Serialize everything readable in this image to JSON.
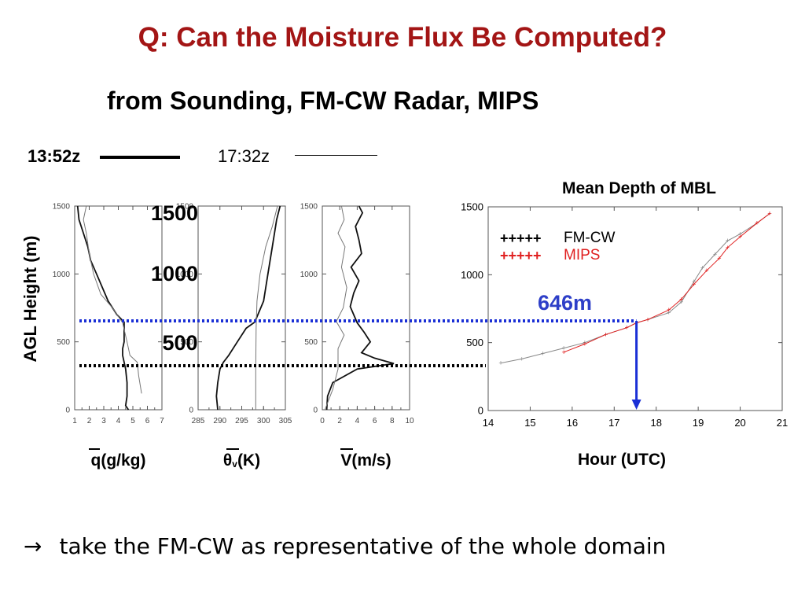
{
  "slide": {
    "title": "Q: Can the Moisture Flux Be Computed?",
    "subtitle": "from Sounding, FM-CW Radar, MIPS",
    "time_thick": "13:52z",
    "time_thin": "17:32z",
    "bottom_arrow": "→",
    "bottom_text": "take the FM-CW as representative of the whole domain",
    "title_color": "#a31515"
  },
  "chart_data": [
    {
      "type": "line",
      "ylabel": "AGL Height (m)",
      "xlabel_parts": [
        "q",
        "(g/kg)"
      ],
      "xlim": [
        1,
        7
      ],
      "ylim": [
        0,
        1500
      ],
      "xticks": [
        "1",
        "2",
        "3",
        "4",
        "5",
        "6",
        "7"
      ],
      "yticks": [
        "0",
        "500",
        "1000",
        "1500"
      ],
      "overlay_labels": [
        "1500",
        "1000",
        "500"
      ],
      "series": [
        {
          "values_xy": [
            [
              4.7,
              0
            ],
            [
              4.5,
              30
            ],
            [
              4.6,
              100
            ],
            [
              4.6,
              200
            ],
            [
              4.5,
              300
            ],
            [
              4.4,
              350
            ],
            [
              4.3,
              400
            ],
            [
              4.3,
              450
            ],
            [
              4.4,
              500
            ],
            [
              4.4,
              600
            ],
            [
              4.4,
              646
            ],
            [
              3.9,
              700
            ],
            [
              3.3,
              800
            ],
            [
              2.9,
              900
            ],
            [
              2.5,
              1000
            ],
            [
              2.1,
              1100
            ],
            [
              1.9,
              1200
            ],
            [
              1.6,
              1300
            ],
            [
              1.3,
              1400
            ],
            [
              1.2,
              1500
            ]
          ]
        },
        {
          "values_xy": [
            [
              5.6,
              120
            ],
            [
              5.4,
              250
            ],
            [
              5.3,
              350
            ],
            [
              4.8,
              400
            ],
            [
              4.6,
              500
            ],
            [
              4.3,
              640
            ],
            [
              3.6,
              750
            ],
            [
              2.8,
              850
            ],
            [
              2.3,
              1000
            ],
            [
              2.0,
              1150
            ],
            [
              1.8,
              1300
            ],
            [
              1.6,
              1400
            ],
            [
              1.8,
              1500
            ]
          ]
        }
      ]
    },
    {
      "type": "line",
      "xlabel_parts": [
        "θ",
        "v",
        "(K)"
      ],
      "xlim": [
        285,
        305
      ],
      "ylim": [
        0,
        1500
      ],
      "xticks": [
        "285",
        "290",
        "295",
        "300",
        "305"
      ],
      "yticks": [
        "0",
        "500",
        "1000",
        "1500"
      ],
      "series": [
        {
          "values_xy": [
            [
              289.5,
              0
            ],
            [
              289.2,
              100
            ],
            [
              289.5,
              200
            ],
            [
              290.0,
              300
            ],
            [
              290.8,
              350
            ],
            [
              292.0,
              400
            ],
            [
              294.0,
              500
            ],
            [
              296.0,
              600
            ],
            [
              298.0,
              646
            ],
            [
              300.0,
              800
            ],
            [
              301.0,
              1000
            ],
            [
              302.0,
              1200
            ],
            [
              303.0,
              1400
            ],
            [
              303.8,
              1500
            ]
          ]
        },
        {
          "values_xy": [
            [
              298.2,
              0
            ],
            [
              298.2,
              300
            ],
            [
              298.3,
              600
            ],
            [
              298.5,
              800
            ],
            [
              299.2,
              1000
            ],
            [
              300.5,
              1200
            ],
            [
              302.0,
              1350
            ],
            [
              303.2,
              1500
            ]
          ]
        }
      ]
    },
    {
      "type": "line",
      "xlabel_parts": [
        "V",
        "(m/s)"
      ],
      "xlim": [
        0,
        10
      ],
      "ylim": [
        0,
        1500
      ],
      "xticks": [
        "0",
        "2",
        "4",
        "6",
        "8",
        "10"
      ],
      "yticks": [
        "0",
        "500",
        "1000",
        "1500"
      ],
      "series": [
        {
          "values_xy": [
            [
              0.5,
              0
            ],
            [
              0.6,
              100
            ],
            [
              1.2,
              200
            ],
            [
              4.0,
              300
            ],
            [
              8.2,
              340
            ],
            [
              6.0,
              380
            ],
            [
              4.5,
              420
            ],
            [
              5.5,
              500
            ],
            [
              4.8,
              570
            ],
            [
              4.0,
              640
            ],
            [
              3.2,
              760
            ],
            [
              3.6,
              860
            ],
            [
              4.2,
              950
            ],
            [
              3.3,
              1050
            ],
            [
              4.5,
              1150
            ],
            [
              4.2,
              1250
            ],
            [
              3.8,
              1350
            ],
            [
              4.6,
              1450
            ],
            [
              4.2,
              1500
            ]
          ]
        },
        {
          "values_xy": [
            [
              0.3,
              0
            ],
            [
              1.2,
              150
            ],
            [
              1.8,
              300
            ],
            [
              1.8,
              450
            ],
            [
              2.5,
              550
            ],
            [
              1.6,
              650
            ],
            [
              2.4,
              750
            ],
            [
              2.8,
              900
            ],
            [
              2.2,
              1050
            ],
            [
              2.6,
              1200
            ],
            [
              1.8,
              1300
            ],
            [
              2.5,
              1400
            ],
            [
              2.2,
              1500
            ]
          ]
        }
      ]
    },
    {
      "type": "line",
      "title": "Mean Depth of MBL",
      "xlabel": "Hour (UTC)",
      "xlim": [
        14,
        21
      ],
      "ylim": [
        0,
        1500
      ],
      "xticks": [
        "14",
        "15",
        "16",
        "17",
        "18",
        "19",
        "20",
        "21"
      ],
      "yticks": [
        "0",
        "500",
        "1000",
        "1500"
      ],
      "annotation": "646m",
      "annotation_color": "#2e3fc8",
      "marker_hour": 17.53,
      "marker_height": 646,
      "legend": [
        {
          "marker": "+++++",
          "name": "FM-CW",
          "color": "#000000"
        },
        {
          "marker": "+++++",
          "name": "MIPS",
          "color": "#e02020"
        }
      ],
      "series": [
        {
          "name": "FM-CW",
          "color": "#888888",
          "values_xy": [
            [
              14.3,
              350
            ],
            [
              14.8,
              380
            ],
            [
              15.3,
              420
            ],
            [
              15.8,
              460
            ],
            [
              16.3,
              500
            ],
            [
              16.8,
              560
            ],
            [
              17.3,
              610
            ],
            [
              17.53,
              646
            ],
            [
              17.8,
              670
            ],
            [
              18.3,
              720
            ],
            [
              18.6,
              800
            ],
            [
              18.9,
              950
            ],
            [
              19.1,
              1050
            ],
            [
              19.4,
              1150
            ],
            [
              19.7,
              1250
            ],
            [
              20.0,
              1300
            ],
            [
              20.4,
              1380
            ],
            [
              20.7,
              1450
            ]
          ]
        },
        {
          "name": "MIPS",
          "color": "#e02020",
          "values_xy": [
            [
              15.8,
              430
            ],
            [
              16.3,
              490
            ],
            [
              16.8,
              560
            ],
            [
              17.3,
              610
            ],
            [
              17.53,
              646
            ],
            [
              17.8,
              670
            ],
            [
              18.3,
              740
            ],
            [
              18.6,
              820
            ],
            [
              18.9,
              930
            ],
            [
              19.2,
              1030
            ],
            [
              19.5,
              1120
            ],
            [
              19.7,
              1200
            ],
            [
              20.0,
              1280
            ],
            [
              20.4,
              1380
            ],
            [
              20.7,
              1450
            ]
          ]
        }
      ]
    }
  ]
}
